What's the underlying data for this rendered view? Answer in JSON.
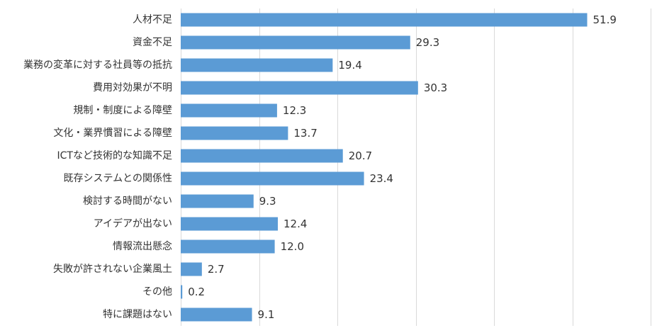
{
  "chart_data": {
    "type": "bar",
    "orientation": "horizontal",
    "categories": [
      "人材不足",
      "資金不足",
      "業務の変革に対する社員等の抵抗",
      "費用対効果が不明",
      "規制・制度による障壁",
      "文化・業界慣習による障壁",
      "ICTなど技術的な知識不足",
      "既存システムとの関係性",
      "検討する時間がない",
      "アイデアが出ない",
      "情報流出懸念",
      "失敗が許されない企業風土",
      "その他",
      "特に課題はない"
    ],
    "values": [
      51.9,
      29.3,
      19.4,
      30.3,
      12.3,
      13.7,
      20.7,
      23.4,
      9.3,
      12.4,
      12.0,
      2.7,
      0.2,
      9.1
    ],
    "value_labels": [
      "51.9",
      "29.3",
      "19.4",
      "30.3",
      "12.3",
      "13.7",
      "20.7",
      "23.4",
      "9.3",
      "12.4",
      "12.0",
      "2.7",
      "0.2",
      "9.1"
    ],
    "xlim": [
      0,
      60
    ],
    "grid_step": 10,
    "grid": true,
    "legend": "none",
    "bar_color": "#5b9bd5"
  }
}
